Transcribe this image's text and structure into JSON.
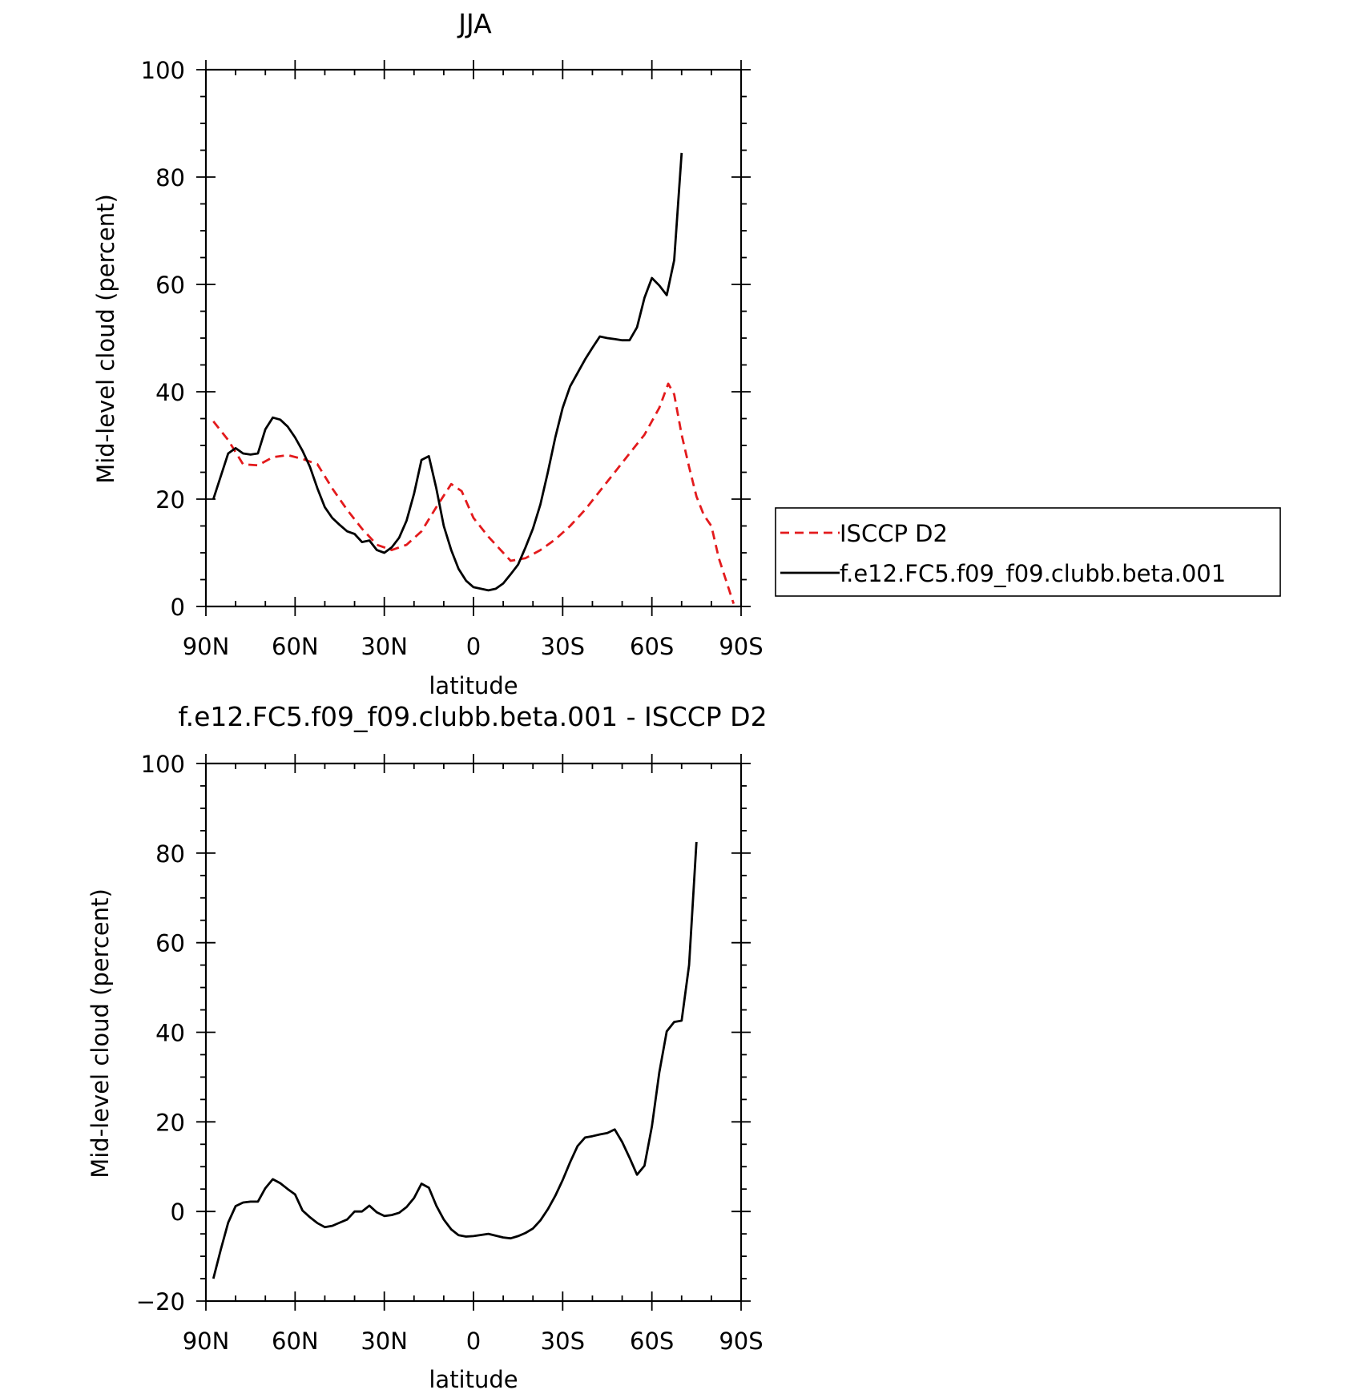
{
  "chart_data": [
    {
      "type": "line",
      "title": "JJA",
      "xlabel": "latitude",
      "ylabel": "Mid-level cloud (percent)",
      "xlim": [
        90,
        -90
      ],
      "ylim": [
        0,
        100
      ],
      "x_ticks": [
        {
          "value": 90,
          "label": "90N"
        },
        {
          "value": 60,
          "label": "60N"
        },
        {
          "value": 30,
          "label": "30N"
        },
        {
          "value": 0,
          "label": "0"
        },
        {
          "value": -30,
          "label": "30S"
        },
        {
          "value": -60,
          "label": "60S"
        },
        {
          "value": -90,
          "label": "90S"
        }
      ],
      "y_ticks": [
        0,
        20,
        40,
        60,
        80,
        100
      ],
      "grid": false,
      "legend_position": "right",
      "series": [
        {
          "name": "ISCCP D2",
          "color": "#e31a1c",
          "dash": "dashed",
          "points": [
            [
              87.5,
              34.5
            ],
            [
              82.5,
              31
            ],
            [
              77.5,
              26.5
            ],
            [
              72.5,
              26.3
            ],
            [
              67.5,
              27.8
            ],
            [
              62.5,
              28.2
            ],
            [
              57.5,
              27.5
            ],
            [
              52.5,
              26.5
            ],
            [
              47.5,
              22
            ],
            [
              42.5,
              18
            ],
            [
              37.5,
              14.5
            ],
            [
              32.5,
              11.5
            ],
            [
              27.5,
              10.5
            ],
            [
              22.5,
              11.5
            ],
            [
              17.5,
              14
            ],
            [
              12.5,
              18.5
            ],
            [
              7.5,
              22.8
            ],
            [
              4,
              21.5
            ],
            [
              0,
              16.5
            ],
            [
              -5,
              13
            ],
            [
              -10,
              10
            ],
            [
              -12.5,
              8.5
            ],
            [
              -17.5,
              9
            ],
            [
              -22.5,
              10.5
            ],
            [
              -27.5,
              12.5
            ],
            [
              -32.5,
              15
            ],
            [
              -37.5,
              18
            ],
            [
              -42.5,
              21.5
            ],
            [
              -47.5,
              25
            ],
            [
              -52.5,
              28.5
            ],
            [
              -57.5,
              32
            ],
            [
              -62.5,
              37
            ],
            [
              -65.5,
              41.5
            ],
            [
              -67.5,
              39.5
            ],
            [
              -70,
              32
            ],
            [
              -72.5,
              26
            ],
            [
              -75,
              20.5
            ],
            [
              -77.5,
              17
            ],
            [
              -80,
              15
            ],
            [
              -82.5,
              9
            ],
            [
              -87.5,
              0.5
            ]
          ]
        },
        {
          "name": "f.e12.FC5.f09_f09.clubb.beta.001",
          "color": "#000000",
          "dash": "solid",
          "points": [
            [
              87.5,
              20
            ],
            [
              82.5,
              28.5
            ],
            [
              80,
              29.5
            ],
            [
              77.5,
              28.5
            ],
            [
              75,
              28.3
            ],
            [
              72.5,
              28.5
            ],
            [
              70,
              33
            ],
            [
              67.5,
              35.2
            ],
            [
              65,
              34.8
            ],
            [
              62.5,
              33.5
            ],
            [
              60,
              31.5
            ],
            [
              57.5,
              29
            ],
            [
              55,
              26
            ],
            [
              52.5,
              22
            ],
            [
              50,
              18.5
            ],
            [
              47.5,
              16.5
            ],
            [
              45,
              15.2
            ],
            [
              42.5,
              14
            ],
            [
              40,
              13.5
            ],
            [
              37.5,
              12
            ],
            [
              35,
              12.3
            ],
            [
              32.5,
              10.5
            ],
            [
              30,
              10
            ],
            [
              27.5,
              11
            ],
            [
              25,
              12.8
            ],
            [
              22.5,
              16
            ],
            [
              20,
              21
            ],
            [
              17.5,
              27.3
            ],
            [
              15,
              28
            ],
            [
              12.5,
              22
            ],
            [
              10,
              15
            ],
            [
              7.5,
              10.5
            ],
            [
              5,
              7
            ],
            [
              2.5,
              4.8
            ],
            [
              0,
              3.6
            ],
            [
              -2.5,
              3.3
            ],
            [
              -5,
              3
            ],
            [
              -7.5,
              3.3
            ],
            [
              -10,
              4.3
            ],
            [
              -12.5,
              6
            ],
            [
              -15,
              7.8
            ],
            [
              -17.5,
              11
            ],
            [
              -20,
              14.5
            ],
            [
              -22.5,
              19
            ],
            [
              -25,
              25
            ],
            [
              -27.5,
              31.5
            ],
            [
              -30,
              37
            ],
            [
              -32.5,
              41
            ],
            [
              -35,
              43.5
            ],
            [
              -37.5,
              46
            ],
            [
              -40,
              48.2
            ],
            [
              -42.5,
              50.3
            ],
            [
              -45,
              50
            ],
            [
              -47.5,
              49.8
            ],
            [
              -50,
              49.6
            ],
            [
              -52.5,
              49.6
            ],
            [
              -55,
              52
            ],
            [
              -57.5,
              57.5
            ],
            [
              -60,
              61.2
            ],
            [
              -62.5,
              59.8
            ],
            [
              -65,
              58
            ],
            [
              -67.5,
              64.5
            ],
            [
              -70,
              84.5
            ]
          ]
        }
      ]
    },
    {
      "type": "line",
      "title": "f.e12.FC5.f09_f09.clubb.beta.001 - ISCCP D2",
      "xlabel": "latitude",
      "ylabel": "Mid-level cloud (percent)",
      "xlim": [
        90,
        -90
      ],
      "ylim": [
        -20,
        100
      ],
      "x_ticks": [
        {
          "value": 90,
          "label": "90N"
        },
        {
          "value": 60,
          "label": "60N"
        },
        {
          "value": 30,
          "label": "30N"
        },
        {
          "value": 0,
          "label": "0"
        },
        {
          "value": -30,
          "label": "30S"
        },
        {
          "value": -60,
          "label": "60S"
        },
        {
          "value": -90,
          "label": "90S"
        }
      ],
      "y_ticks": [
        -20,
        0,
        20,
        40,
        60,
        80,
        100
      ],
      "grid": false,
      "series": [
        {
          "color": "#000000",
          "dash": "solid",
          "points": [
            [
              87.5,
              -15
            ],
            [
              85,
              -8.5
            ],
            [
              82.5,
              -2.5
            ],
            [
              80,
              1.2
            ],
            [
              77.5,
              2
            ],
            [
              75,
              2.2
            ],
            [
              72.5,
              2.2
            ],
            [
              70,
              5.2
            ],
            [
              67.5,
              7.2
            ],
            [
              65,
              6.3
            ],
            [
              62.5,
              5
            ],
            [
              60,
              3.8
            ],
            [
              57.5,
              0.2
            ],
            [
              55,
              -1.3
            ],
            [
              52.5,
              -2.6
            ],
            [
              50,
              -3.5
            ],
            [
              47.5,
              -3.2
            ],
            [
              45,
              -2.5
            ],
            [
              42.5,
              -1.8
            ],
            [
              40,
              0
            ],
            [
              37.5,
              0
            ],
            [
              35,
              1.3
            ],
            [
              32.5,
              -0.2
            ],
            [
              30,
              -1
            ],
            [
              27.5,
              -0.8
            ],
            [
              25,
              -0.3
            ],
            [
              22.5,
              1
            ],
            [
              20,
              3
            ],
            [
              17.5,
              6.2
            ],
            [
              15,
              5.3
            ],
            [
              12.5,
              1.3
            ],
            [
              10,
              -1.8
            ],
            [
              7.5,
              -4
            ],
            [
              5,
              -5.3
            ],
            [
              2.5,
              -5.6
            ],
            [
              0,
              -5.5
            ],
            [
              -5,
              -5
            ],
            [
              -7.5,
              -5.4
            ],
            [
              -10,
              -5.8
            ],
            [
              -12.5,
              -6
            ],
            [
              -15,
              -5.5
            ],
            [
              -17.5,
              -4.8
            ],
            [
              -20,
              -3.8
            ],
            [
              -22.5,
              -2
            ],
            [
              -25,
              0.5
            ],
            [
              -27.5,
              3.5
            ],
            [
              -30,
              7
            ],
            [
              -32.5,
              11
            ],
            [
              -35,
              14.6
            ],
            [
              -37.5,
              16.5
            ],
            [
              -40,
              16.8
            ],
            [
              -42.5,
              17.2
            ],
            [
              -45,
              17.5
            ],
            [
              -47.5,
              18.3
            ],
            [
              -50,
              15.5
            ],
            [
              -52.5,
              12
            ],
            [
              -55,
              8.2
            ],
            [
              -57.5,
              10.2
            ],
            [
              -60,
              19
            ],
            [
              -62.5,
              31
            ],
            [
              -65,
              40.2
            ],
            [
              -67.5,
              42.3
            ],
            [
              -70,
              42.6
            ],
            [
              -72.5,
              55
            ],
            [
              -75,
              82.5
            ]
          ]
        }
      ]
    }
  ]
}
